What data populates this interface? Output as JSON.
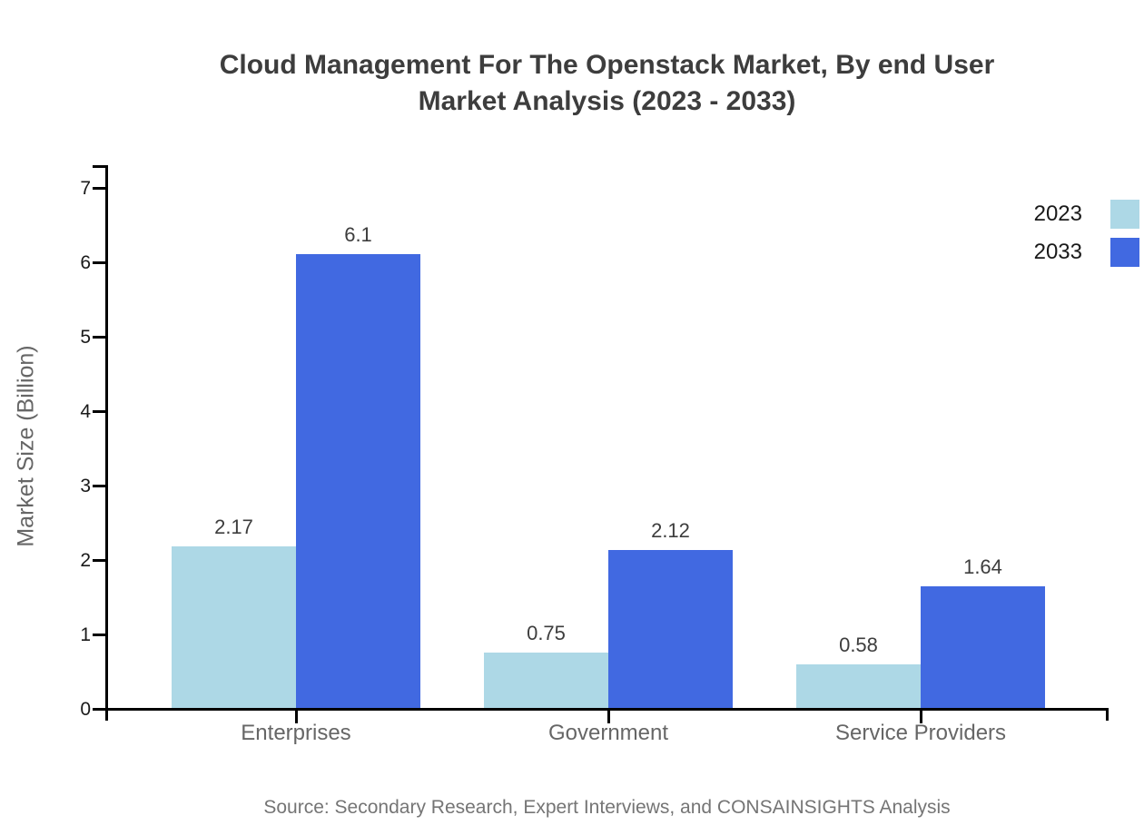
{
  "title_lines": [
    "Cloud Management For The Openstack Market, By end User",
    "Market Analysis (2023 - 2033)"
  ],
  "chart_data": {
    "type": "bar",
    "title": "Cloud Management For The Openstack Market, By end User Market Analysis (2023 - 2033)",
    "categories": [
      "Enterprises",
      "Government",
      "Service Providers"
    ],
    "series": [
      {
        "name": "2023",
        "color": "#ADD8E6",
        "values": [
          2.17,
          0.75,
          0.58
        ],
        "labels": [
          "2.17",
          "0.75",
          "0.58"
        ]
      },
      {
        "name": "2033",
        "color": "#4169E1",
        "values": [
          6.1,
          2.12,
          1.64
        ],
        "labels": [
          "6.1",
          "2.12",
          "1.64"
        ]
      }
    ],
    "xlabel": "",
    "ylabel": "Market Size (Billion)",
    "ylim": [
      0,
      7
    ],
    "yticks": [
      0,
      1,
      2,
      3,
      4,
      5,
      6,
      7
    ],
    "grid": false,
    "legend_position": "top-right"
  },
  "source": "Source: Secondary Research, Expert Interviews, and CONSAINSIGHTS Analysis",
  "colors": {
    "series_2023": "#ADD8E6",
    "series_2033": "#4169E1",
    "axis": "#000000",
    "title_text": "#3d3d3d",
    "category_text": "#666666",
    "value_text": "#3d3d3d",
    "source_text": "#757575"
  }
}
